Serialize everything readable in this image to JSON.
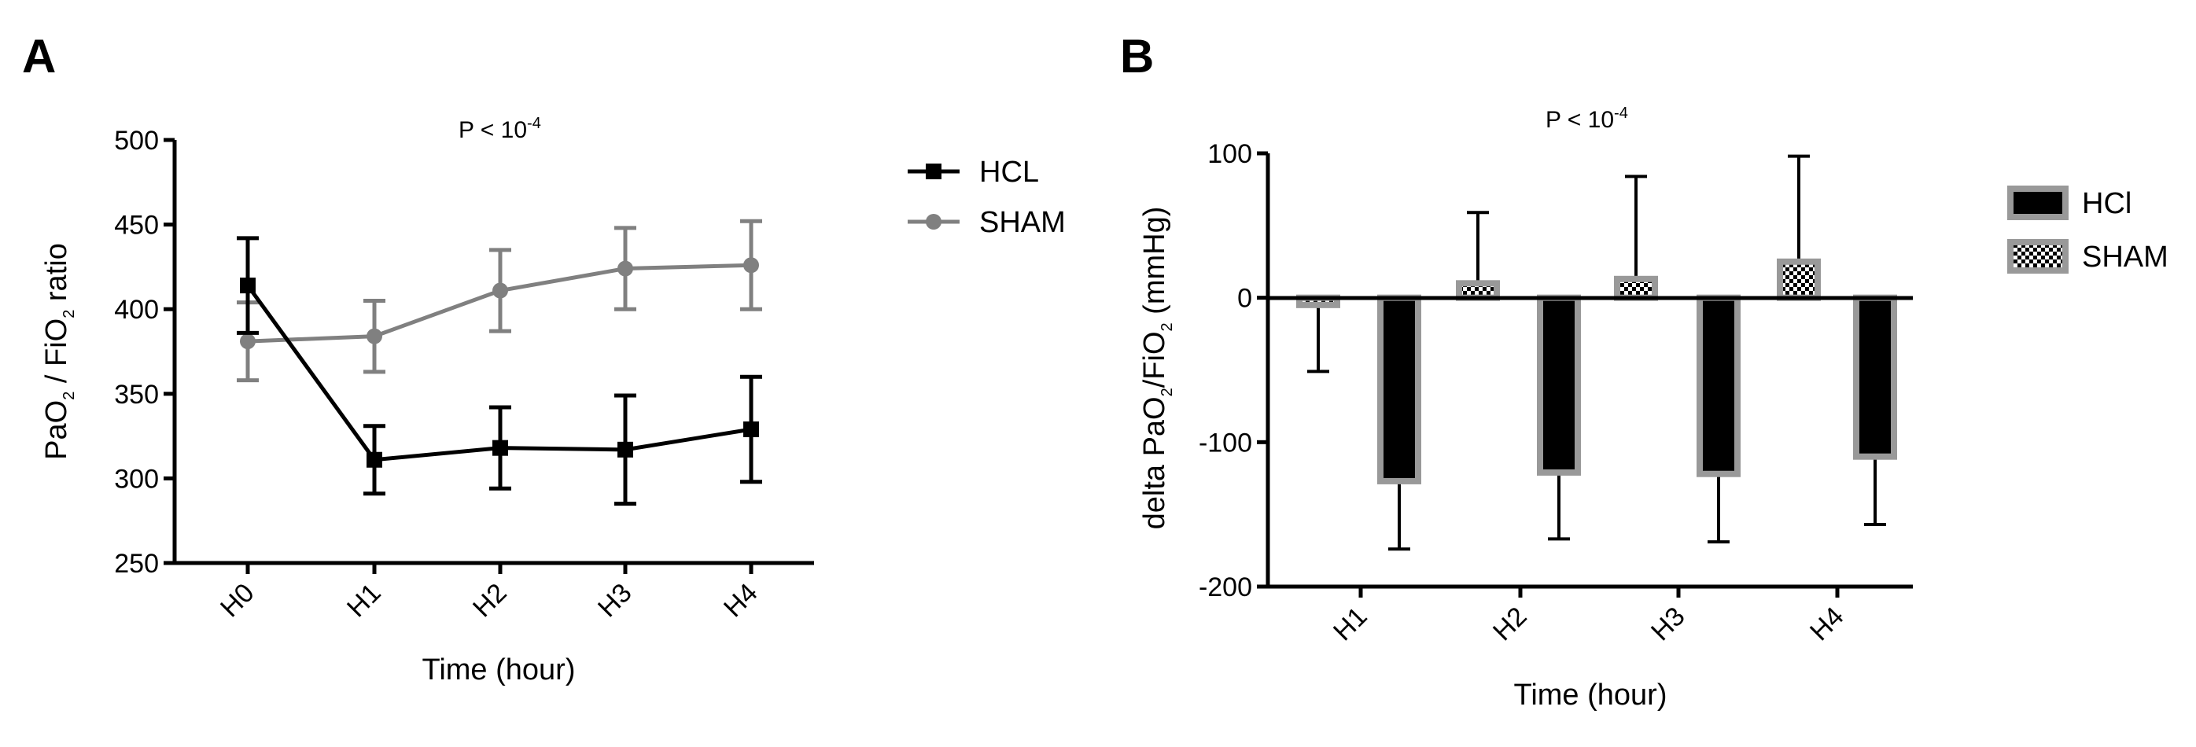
{
  "panels": {
    "a": {
      "panel_label": "A",
      "pvalue": {
        "text": "P < 10",
        "exp": "-4"
      },
      "xlabel": "Time (hour)",
      "ylabel": {
        "p1": "PaO",
        "s1": "2",
        "p2": " / FiO",
        "s2": "2",
        "p3": " ratio"
      },
      "colors": {
        "HCL": "#000000",
        "SHAM": "#808080"
      }
    },
    "b": {
      "panel_label": "B",
      "pvalue": {
        "text": "P < 10",
        "exp": "-4"
      },
      "xlabel": "Time (hour)",
      "ylabel": {
        "p1": "delta PaO",
        "s1": "2",
        "p2": "/FiO",
        "s2": "2",
        "p3": " (mmHg)"
      },
      "colors": {
        "HCl_fill": "#000000",
        "border": "#999999",
        "SHAM_pattern": "checkerboard"
      }
    }
  },
  "chart_data": [
    {
      "type": "line",
      "title": "P < 10^-4",
      "xlabel": "Time (hour)",
      "ylabel": "PaO2 / FiO2 ratio",
      "categories": [
        "H0",
        "H1",
        "H2",
        "H3",
        "H4"
      ],
      "ylim": [
        250,
        500
      ],
      "yticks": [
        250,
        300,
        350,
        400,
        450,
        500
      ],
      "series": [
        {
          "name": "HCL",
          "marker": "square",
          "values": [
            414,
            311,
            318,
            317,
            329
          ],
          "err_upper": [
            28,
            20,
            24,
            32,
            31
          ],
          "err_lower": [
            28,
            20,
            24,
            32,
            31
          ]
        },
        {
          "name": "SHAM",
          "marker": "circle",
          "values": [
            381,
            384,
            411,
            424,
            426
          ],
          "err_upper": [
            23,
            21,
            24,
            24,
            26
          ],
          "err_lower": [
            23,
            21,
            24,
            24,
            26
          ]
        }
      ],
      "legend": "right"
    },
    {
      "type": "bar",
      "title": "P < 10^-4",
      "xlabel": "Time (hour)",
      "ylabel": "delta PaO2/FiO2 (mmHg)",
      "categories": [
        "H1",
        "H2",
        "H3",
        "H4"
      ],
      "ylim": [
        -200,
        100
      ],
      "yticks": [
        -200,
        -100,
        0,
        100
      ],
      "series": [
        {
          "name": "SHAM",
          "values": [
            -5,
            10,
            13,
            25
          ],
          "err": [
            46,
            49,
            71,
            73
          ]
        },
        {
          "name": "HCl",
          "values": [
            -127,
            -121,
            -122,
            -110
          ],
          "err": [
            47,
            46,
            47,
            47
          ]
        }
      ],
      "legend_order": [
        "HCl",
        "SHAM"
      ],
      "legend": "right"
    }
  ]
}
